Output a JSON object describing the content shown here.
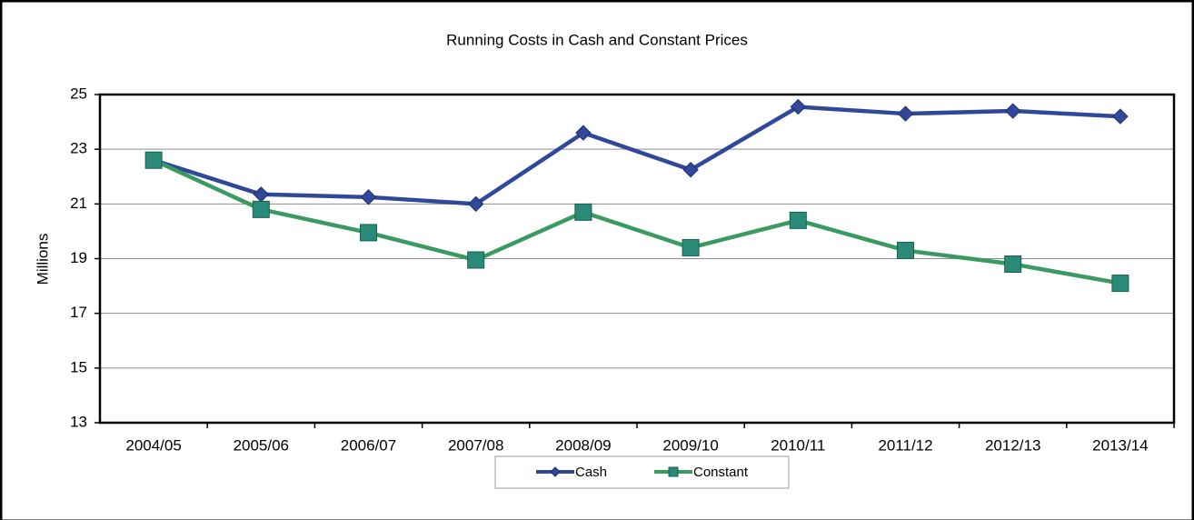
{
  "chart_data": {
    "type": "line",
    "title": "Running Costs in Cash and Constant Prices",
    "y_label": "Millions",
    "categories": [
      "2004/05",
      "2005/06",
      "2006/07",
      "2007/08",
      "2008/09",
      "2009/10",
      "2010/11",
      "2011/12",
      "2012/13",
      "2013/14"
    ],
    "series": [
      {
        "name": "Cash",
        "color": "#30489a",
        "marker": "diamond",
        "values": [
          22.6,
          21.35,
          21.25,
          21.0,
          23.6,
          22.25,
          24.55,
          24.3,
          24.4,
          24.2
        ]
      },
      {
        "name": "Constant",
        "color": "#3a9a60",
        "marker": "square",
        "values": [
          22.6,
          20.8,
          19.95,
          18.95,
          20.7,
          19.4,
          20.4,
          19.3,
          18.8,
          18.1
        ]
      }
    ],
    "ylim": [
      13,
      25
    ],
    "yticks": [
      13,
      15,
      17,
      19,
      21,
      23,
      25
    ],
    "grid": true,
    "legend": "bottom"
  }
}
